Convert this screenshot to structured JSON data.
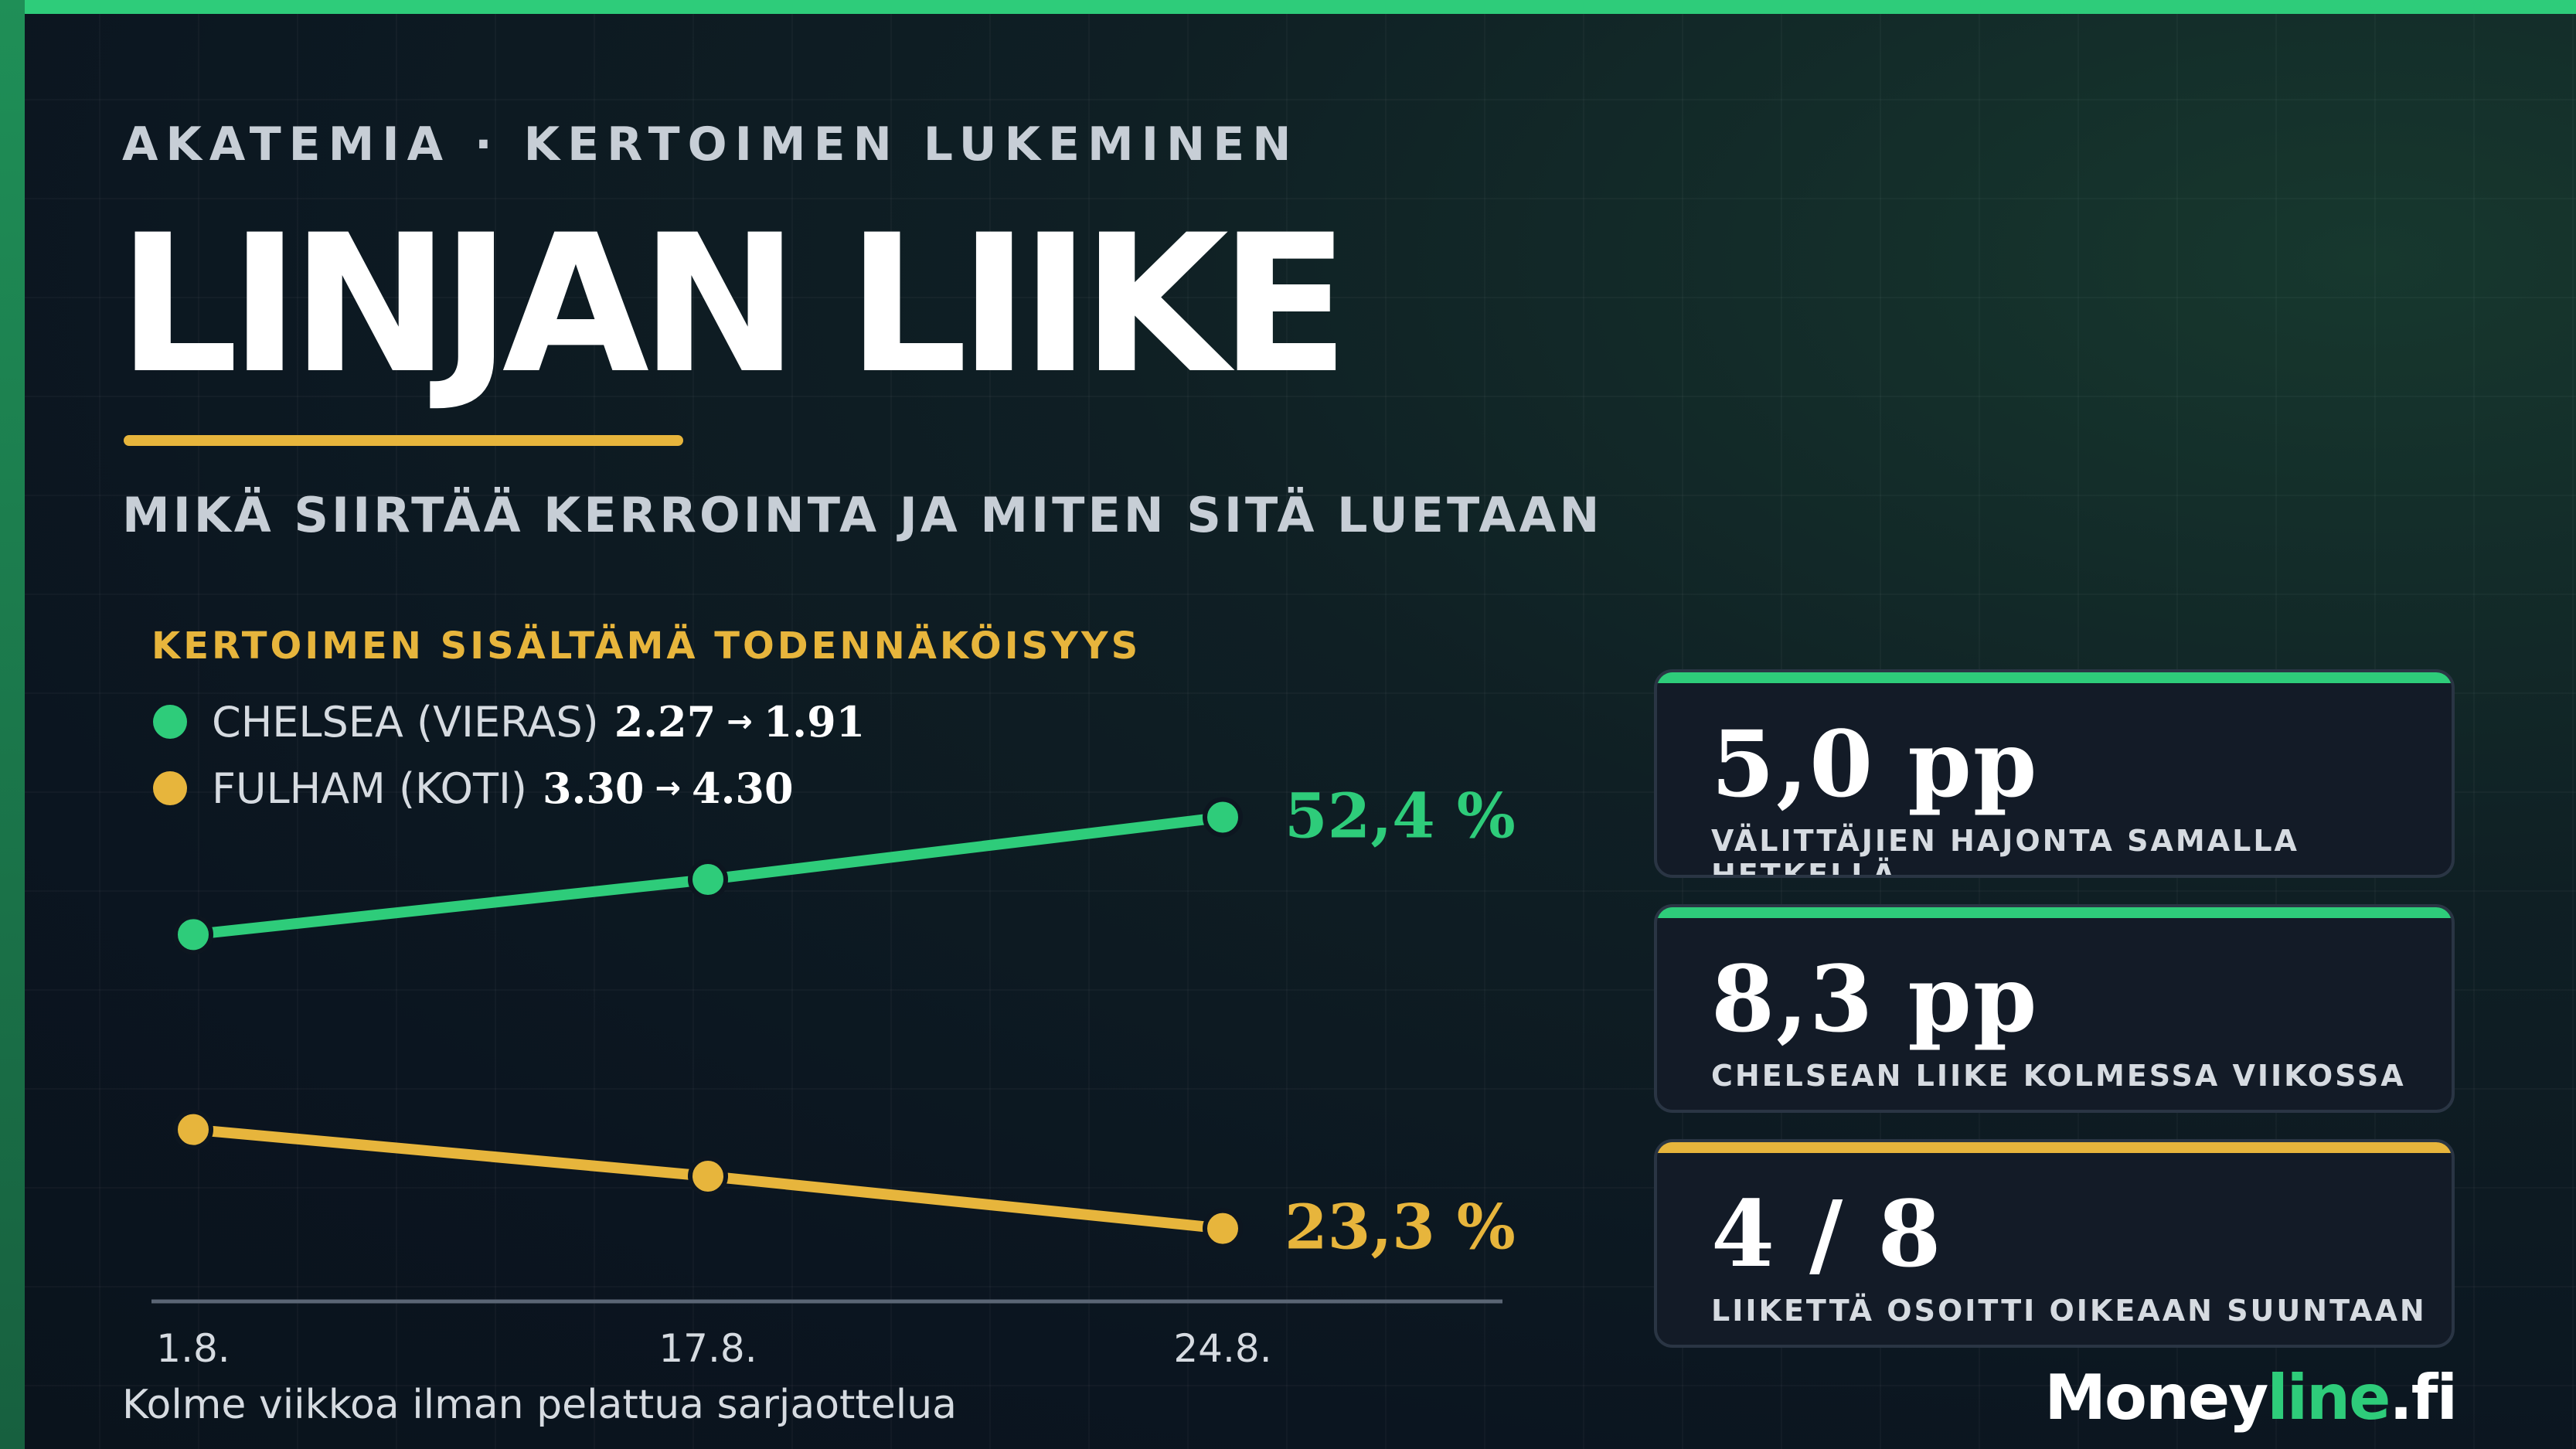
{
  "header": {
    "eyebrow": "AKATEMIA · KERTOIMEN LUKEMINEN",
    "title": "LINJAN LIIKE",
    "subtitle": "MIKÄ SIIRTÄÄ KERROINTA JA MITEN SITÄ LUETAAN"
  },
  "legend": {
    "heading": "KERTOIMEN SISÄLTÄMÄ TODENNÄKÖISYYS",
    "items": [
      {
        "team": "CHELSEA (VIERAS)",
        "odds_from": "2.27",
        "odds_to": "1.91",
        "color": "#2ecc7a"
      },
      {
        "team": "FULHAM (KOTI)",
        "odds_from": "3.30",
        "odds_to": "4.30",
        "color": "#e7b53c"
      }
    ],
    "arrow": "→"
  },
  "chart_data": {
    "type": "line",
    "title": "KERTOIMEN SISÄLTÄMÄ TODENNÄKÖISYYS",
    "categories": [
      "1.8.",
      "17.8.",
      "24.8."
    ],
    "series": [
      {
        "name": "CHELSEA (VIERAS) 2.27 → 1.91",
        "values": [
          44.1,
          48.0,
          52.4
        ],
        "color": "#2ecc7a",
        "end_label": "52,4 %"
      },
      {
        "name": "FULHAM (KOTI) 3.30 → 4.30",
        "values": [
          30.3,
          27.0,
          23.3
        ],
        "color": "#e7b53c",
        "end_label": "23,3 %"
      }
    ],
    "ylim": [
      20,
      55
    ],
    "grid": false,
    "legend_placement": "top-left"
  },
  "caption": "Kolme viikkoa ilman pelattua sarjaottelua",
  "stats": [
    {
      "value": "5,0 pp",
      "label": "VÄLITTÄJIEN HAJONTA SAMALLA HETKELLÄ",
      "accent": "#2ecc7a"
    },
    {
      "value": "8,3 pp",
      "label": "CHELSEAN LIIKE KOLMESSA VIIKOSSA",
      "accent": "#2ecc7a"
    },
    {
      "value": "4 / 8",
      "label": "LIIKETTÄ OSOITTI OIKEAAN SUUNTAAN",
      "accent": "#e7b53c"
    }
  ],
  "brand": {
    "main": "Money",
    "accent": "line",
    "suffix": ".fi"
  }
}
